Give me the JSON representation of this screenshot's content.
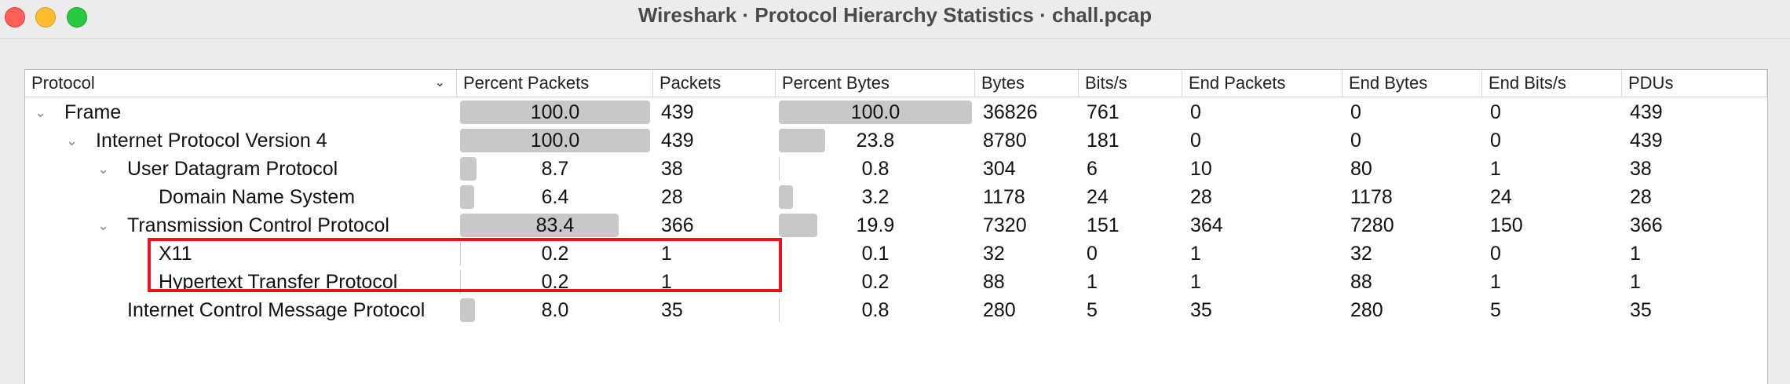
{
  "window": {
    "title": "Wireshark · Protocol Hierarchy Statistics · chall.pcap",
    "highlight_color": "#e8141c"
  },
  "columns": [
    "Protocol",
    "Percent Packets",
    "Packets",
    "Percent Bytes",
    "Bytes",
    "Bits/s",
    "End Packets",
    "End Bytes",
    "End Bits/s",
    "PDUs"
  ],
  "rows": [
    {
      "protocol": "Frame",
      "level": 0,
      "expandable": true,
      "pct_packets": "100.0",
      "pct_packets_value": 100.0,
      "packets": "439",
      "pct_bytes": "100.0",
      "pct_bytes_value": 100.0,
      "bytes": "36826",
      "bits_s": "761",
      "end_packets": "0",
      "end_bytes": "0",
      "end_bits_s": "0",
      "pdus": "439"
    },
    {
      "protocol": "Internet Protocol Version 4",
      "level": 1,
      "expandable": true,
      "pct_packets": "100.0",
      "pct_packets_value": 100.0,
      "packets": "439",
      "pct_bytes": "23.8",
      "pct_bytes_value": 23.8,
      "bytes": "8780",
      "bits_s": "181",
      "end_packets": "0",
      "end_bytes": "0",
      "end_bits_s": "0",
      "pdus": "439"
    },
    {
      "protocol": "User Datagram Protocol",
      "level": 2,
      "expandable": true,
      "pct_packets": "8.7",
      "pct_packets_value": 8.7,
      "packets": "38",
      "pct_bytes": "0.8",
      "pct_bytes_value": 0.8,
      "bytes": "304",
      "bits_s": "6",
      "end_packets": "10",
      "end_bytes": "80",
      "end_bits_s": "1",
      "pdus": "38"
    },
    {
      "protocol": "Domain Name System",
      "level": 3,
      "expandable": false,
      "pct_packets": "6.4",
      "pct_packets_value": 6.4,
      "packets": "28",
      "pct_bytes": "3.2",
      "pct_bytes_value": 3.2,
      "bytes": "1178",
      "bits_s": "24",
      "end_packets": "28",
      "end_bytes": "1178",
      "end_bits_s": "24",
      "pdus": "28"
    },
    {
      "protocol": "Transmission Control Protocol",
      "level": 2,
      "expandable": true,
      "pct_packets": "83.4",
      "pct_packets_value": 83.4,
      "packets": "366",
      "pct_bytes": "19.9",
      "pct_bytes_value": 19.9,
      "bytes": "7320",
      "bits_s": "151",
      "end_packets": "364",
      "end_bytes": "7280",
      "end_bits_s": "150",
      "pdus": "366"
    },
    {
      "protocol": "X11",
      "level": 3,
      "expandable": false,
      "pct_packets": "0.2",
      "pct_packets_value": 0.2,
      "packets": "1",
      "pct_bytes": "0.1",
      "pct_bytes_value": 0.1,
      "bytes": "32",
      "bits_s": "0",
      "end_packets": "1",
      "end_bytes": "32",
      "end_bits_s": "0",
      "pdus": "1"
    },
    {
      "protocol": "Hypertext Transfer Protocol",
      "level": 3,
      "expandable": false,
      "pct_packets": "0.2",
      "pct_packets_value": 0.2,
      "packets": "1",
      "pct_bytes": "0.2",
      "pct_bytes_value": 0.2,
      "bytes": "88",
      "bits_s": "1",
      "end_packets": "1",
      "end_bytes": "88",
      "end_bits_s": "1",
      "pdus": "1"
    },
    {
      "protocol": "Internet Control Message Protocol",
      "level": 2,
      "expandable": false,
      "pct_packets": "8.0",
      "pct_packets_value": 8.0,
      "packets": "35",
      "pct_bytes": "0.8",
      "pct_bytes_value": 0.8,
      "bytes": "280",
      "bits_s": "5",
      "end_packets": "35",
      "end_bytes": "280",
      "end_bits_s": "5",
      "pdus": "35"
    }
  ]
}
